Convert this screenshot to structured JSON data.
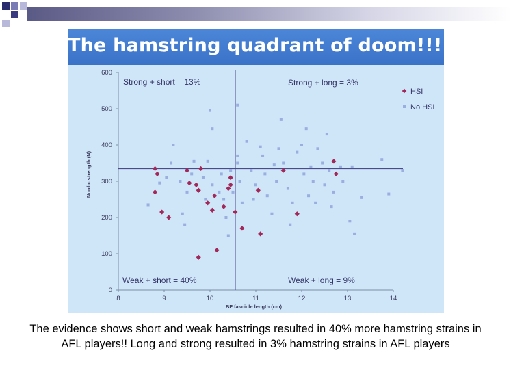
{
  "slide": {
    "title": "The hamstring quadrant of doom!!!",
    "caption": "The evidence shows short and weak hamstrings resulted in 40% more hamstring strains in AFL players!! Long and strong resulted in 3% hamstring strains in AFL players"
  },
  "colors": {
    "hsi": "#a2285a",
    "no_hsi": "#9aaee0",
    "quadrant_lines": "#4a4a8c",
    "title_band": "#3f78cc",
    "photo_bg": "#cfe6f8"
  },
  "chart_data": {
    "type": "scatter",
    "title": "",
    "xlabel": "BF fascicle length (cm)",
    "ylabel": "Nordic strength (N)",
    "xlim": [
      8,
      14
    ],
    "ylim": [
      0,
      600
    ],
    "xticks": [
      "8",
      "9",
      "10",
      "11",
      "12",
      "13",
      "14"
    ],
    "yticks": [
      "0",
      "100",
      "200",
      "300",
      "400",
      "500",
      "600"
    ],
    "grid": false,
    "legend": "top-right",
    "thresholds": {
      "x": 10.55,
      "y": 335
    },
    "quadrant_labels": {
      "top_left": "Strong + short = 13%",
      "top_right": "Strong + long = 3%",
      "bottom_left": "Weak + short = 40%",
      "bottom_right": "Weak + long = 9%"
    },
    "series": [
      {
        "name": "HSI",
        "marker": "diamond",
        "points": [
          [
            8.8,
            335
          ],
          [
            8.85,
            320
          ],
          [
            8.8,
            270
          ],
          [
            8.95,
            215
          ],
          [
            9.1,
            200
          ],
          [
            9.5,
            330
          ],
          [
            9.55,
            295
          ],
          [
            9.7,
            290
          ],
          [
            9.75,
            275
          ],
          [
            9.8,
            335
          ],
          [
            9.95,
            240
          ],
          [
            10.05,
            220
          ],
          [
            10.1,
            260
          ],
          [
            10.15,
            110
          ],
          [
            9.75,
            90
          ],
          [
            10.3,
            230
          ],
          [
            10.4,
            280
          ],
          [
            10.45,
            290
          ],
          [
            10.45,
            310
          ],
          [
            10.55,
            215
          ],
          [
            10.7,
            170
          ],
          [
            11.05,
            275
          ],
          [
            11.1,
            155
          ],
          [
            11.6,
            330
          ],
          [
            11.9,
            210
          ],
          [
            12.7,
            355
          ],
          [
            12.75,
            320
          ]
        ]
      },
      {
        "name": "No HSI",
        "marker": "square",
        "points": [
          [
            8.65,
            235
          ],
          [
            8.9,
            295
          ],
          [
            9.05,
            310
          ],
          [
            9.15,
            350
          ],
          [
            9.35,
            300
          ],
          [
            9.4,
            210
          ],
          [
            9.45,
            180
          ],
          [
            9.5,
            270
          ],
          [
            9.6,
            320
          ],
          [
            9.65,
            355
          ],
          [
            9.85,
            310
          ],
          [
            9.9,
            250
          ],
          [
            9.95,
            355
          ],
          [
            10.0,
            495
          ],
          [
            10.05,
            445
          ],
          [
            10.05,
            290
          ],
          [
            10.2,
            270
          ],
          [
            10.25,
            320
          ],
          [
            10.3,
            250
          ],
          [
            10.35,
            200
          ],
          [
            10.4,
            150
          ],
          [
            10.45,
            330
          ],
          [
            10.5,
            270
          ],
          [
            10.6,
            510
          ],
          [
            10.6,
            350
          ],
          [
            10.65,
            300
          ],
          [
            10.7,
            240
          ],
          [
            10.8,
            410
          ],
          [
            10.9,
            330
          ],
          [
            10.95,
            250
          ],
          [
            11.0,
            290
          ],
          [
            11.1,
            395
          ],
          [
            11.15,
            370
          ],
          [
            11.2,
            320
          ],
          [
            11.25,
            260
          ],
          [
            11.35,
            210
          ],
          [
            11.4,
            345
          ],
          [
            11.45,
            300
          ],
          [
            11.5,
            390
          ],
          [
            11.55,
            470
          ],
          [
            11.6,
            350
          ],
          [
            11.7,
            280
          ],
          [
            11.75,
            180
          ],
          [
            11.8,
            240
          ],
          [
            11.9,
            380
          ],
          [
            12.0,
            400
          ],
          [
            12.05,
            320
          ],
          [
            12.1,
            445
          ],
          [
            12.15,
            260
          ],
          [
            12.2,
            340
          ],
          [
            12.25,
            300
          ],
          [
            12.3,
            240
          ],
          [
            12.35,
            390
          ],
          [
            12.45,
            350
          ],
          [
            12.5,
            290
          ],
          [
            12.55,
            430
          ],
          [
            12.6,
            330
          ],
          [
            12.65,
            230
          ],
          [
            12.7,
            270
          ],
          [
            12.85,
            340
          ],
          [
            12.9,
            300
          ],
          [
            13.05,
            190
          ],
          [
            13.1,
            340
          ],
          [
            13.15,
            155
          ],
          [
            13.3,
            255
          ],
          [
            13.75,
            360
          ],
          [
            13.9,
            265
          ],
          [
            14.2,
            330
          ],
          [
            9.2,
            400
          ],
          [
            10.6,
            370
          ]
        ]
      }
    ]
  }
}
